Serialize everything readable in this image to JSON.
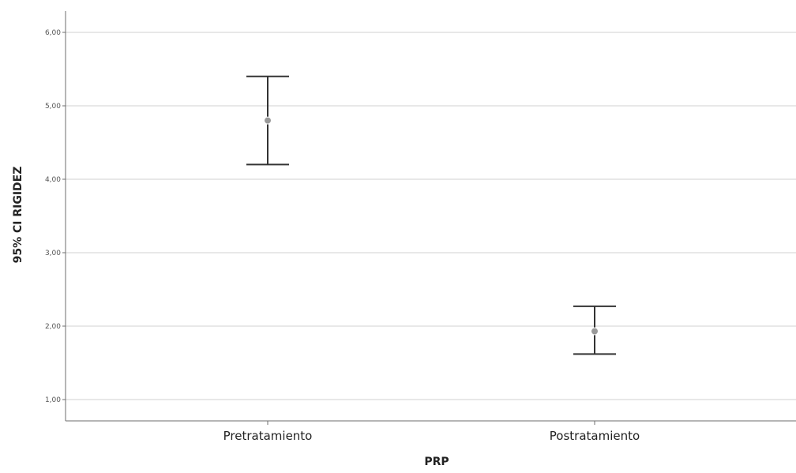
{
  "chart_data": {
    "type": "errorbar",
    "xlabel": "PRP",
    "ylabel": "95% CI RIGIDEZ",
    "categories": [
      "Pretratamiento",
      "Postratamiento"
    ],
    "series": [
      {
        "mean": [
          4.8,
          1.93
        ],
        "lower": [
          4.2,
          1.62
        ],
        "upper": [
          5.4,
          2.27
        ]
      }
    ],
    "ylim": [
      0.7,
      6.3
    ],
    "yticks": [
      1,
      2,
      3,
      4,
      5,
      6
    ],
    "ytick_labels": [
      "1,00",
      "2,00",
      "3,00",
      "4,00",
      "5,00",
      "6,00"
    ],
    "grid": "horizontal",
    "colors": {
      "grid": "#d9d9d9",
      "axis": "#6e6e6e",
      "errorbar": "#333333",
      "marker": "#9a9a9a"
    }
  }
}
